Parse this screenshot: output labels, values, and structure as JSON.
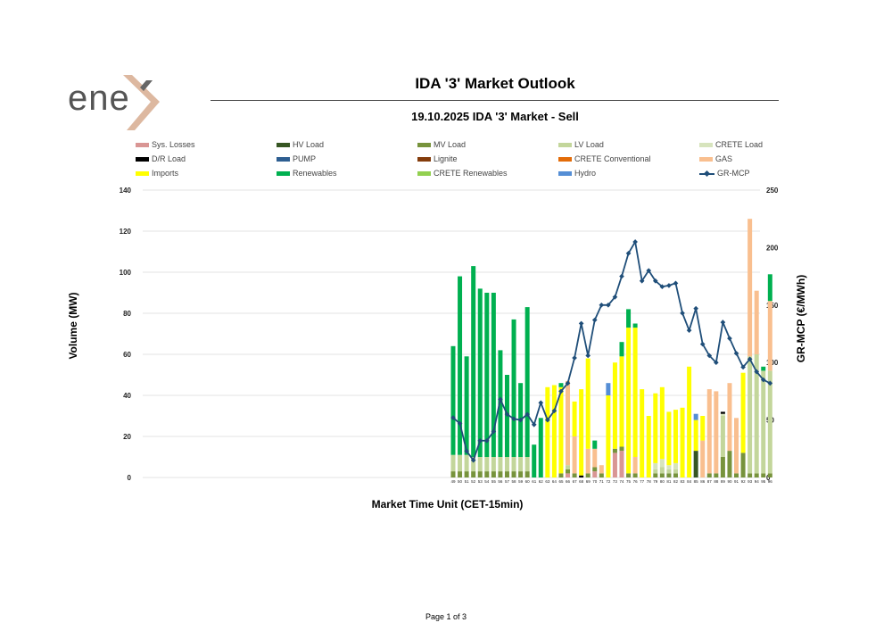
{
  "header": {
    "logo_text": "ene",
    "report_title": "IDA '3' Market Outlook",
    "chart_title": "19.10.2025  IDA '3' Market - Sell"
  },
  "footer": {
    "page_label": "Page 1 of 3"
  },
  "colors": {
    "sys_losses": "#D99694",
    "hv_load": "#375623",
    "mv_load": "#77933C",
    "lv_load": "#C3D69B",
    "crete_load": "#D7E4BD",
    "dr_load": "#000000",
    "pump": "#2E5E91",
    "lignite": "#843C0C",
    "crete_conventional": "#E36C09",
    "gas": "#F9BF8F",
    "imports": "#FFFF00",
    "renewables": "#00B050",
    "crete_renewables": "#92D050",
    "hydro": "#558ED5",
    "gr_mcp": "#1F4E79"
  },
  "chart_data": {
    "type": "bar",
    "title": "19.10.2025  IDA '3' Market - Sell",
    "xlabel": "Market Time Unit (CET-15min)",
    "ylabel": "Volume (MW)",
    "y2label": "GR-MCP (€/MWh)",
    "ylim": [
      0,
      140
    ],
    "y2lim": [
      0,
      250
    ],
    "yticks": [
      0,
      20,
      40,
      60,
      80,
      100,
      120,
      140
    ],
    "y2ticks": [
      0,
      50,
      100,
      150,
      200,
      250
    ],
    "grid": true,
    "legend_position": "top",
    "categories": [
      "49",
      "50",
      "51",
      "52",
      "53",
      "54",
      "55",
      "56",
      "57",
      "58",
      "59",
      "60",
      "61",
      "62",
      "63",
      "64",
      "65",
      "66",
      "67",
      "68",
      "69",
      "70",
      "71",
      "72",
      "73",
      "74",
      "75",
      "76",
      "77",
      "78",
      "79",
      "80",
      "81",
      "82",
      "83",
      "84",
      "85",
      "86",
      "87",
      "88",
      "89",
      "90",
      "91",
      "92",
      "93",
      "94",
      "95",
      "96"
    ],
    "series": [
      {
        "name": "Sys. Losses",
        "key": "sys_losses",
        "kind": "bar",
        "values": [
          0,
          0,
          0,
          0,
          0,
          0,
          0,
          0,
          0,
          0,
          0,
          0,
          0,
          0,
          0,
          0,
          0,
          2,
          0,
          0,
          0,
          3,
          0,
          0,
          12,
          13,
          0,
          0,
          0,
          0,
          0,
          0,
          0,
          0,
          0,
          0,
          0,
          0,
          0,
          0,
          0,
          0,
          0,
          0,
          0,
          0,
          0,
          0
        ]
      },
      {
        "name": "HV Load",
        "key": "hv_load",
        "kind": "bar",
        "values": [
          0,
          0,
          0,
          0,
          0,
          0,
          0,
          0,
          0,
          0,
          0,
          0,
          0,
          0,
          0,
          0,
          0,
          0,
          0,
          0,
          0,
          0,
          0,
          0,
          0,
          0,
          0,
          0,
          0,
          0,
          0,
          0,
          0,
          0,
          0,
          0,
          13,
          0,
          0,
          0,
          0,
          0,
          0,
          0,
          0,
          0,
          0,
          0
        ]
      },
      {
        "name": "MV Load",
        "key": "mv_load",
        "kind": "bar",
        "values": [
          3,
          3,
          3,
          3,
          3,
          3,
          3,
          3,
          3,
          3,
          3,
          3,
          0,
          0,
          0,
          0,
          2,
          2,
          2,
          0,
          2,
          2,
          2,
          0,
          2,
          2,
          2,
          2,
          0,
          0,
          2,
          2,
          2,
          2,
          0,
          0,
          0,
          0,
          2,
          2,
          10,
          13,
          2,
          12,
          2,
          2,
          2,
          2
        ]
      },
      {
        "name": "LV Load",
        "key": "lv_load",
        "kind": "bar",
        "values": [
          8,
          8,
          8,
          7,
          7,
          7,
          7,
          7,
          7,
          7,
          7,
          7,
          0,
          0,
          0,
          0,
          0,
          2,
          0,
          0,
          0,
          0,
          0,
          0,
          0,
          0,
          0,
          0,
          0,
          0,
          2,
          3,
          2,
          2,
          0,
          0,
          0,
          0,
          0,
          0,
          20,
          0,
          0,
          0,
          57,
          58,
          50,
          50
        ]
      },
      {
        "name": "CRETE Load",
        "key": "crete_load",
        "kind": "bar",
        "values": [
          0,
          0,
          0,
          0,
          0,
          0,
          0,
          0,
          0,
          0,
          0,
          0,
          0,
          0,
          0,
          0,
          0,
          0,
          0,
          0,
          0,
          0,
          0,
          0,
          0,
          0,
          0,
          0,
          0,
          0,
          3,
          4,
          2,
          3,
          0,
          0,
          0,
          0,
          0,
          0,
          1,
          0,
          0,
          0,
          0,
          0,
          0,
          0
        ]
      },
      {
        "name": "D/R Load",
        "key": "dr_load",
        "kind": "bar",
        "values": [
          0,
          0,
          0,
          0,
          0,
          0,
          0,
          0,
          0,
          0,
          0,
          0,
          0,
          0,
          0,
          0,
          0,
          0,
          0,
          1,
          0,
          0,
          0,
          0,
          0,
          0,
          0,
          0,
          0,
          0,
          0,
          0,
          0,
          0,
          0,
          0,
          0,
          0,
          0,
          0,
          1,
          0,
          0,
          0,
          0,
          0,
          0,
          0
        ]
      },
      {
        "name": "PUMP",
        "key": "pump",
        "kind": "bar",
        "values": [
          0,
          0,
          0,
          0,
          0,
          0,
          0,
          0,
          0,
          0,
          0,
          0,
          0,
          0,
          0,
          0,
          0,
          0,
          0,
          0,
          0,
          0,
          0,
          0,
          0,
          0,
          0,
          0,
          0,
          0,
          0,
          0,
          0,
          0,
          0,
          0,
          0,
          0,
          0,
          0,
          0,
          0,
          0,
          0,
          0,
          0,
          0,
          0
        ]
      },
      {
        "name": "Lignite",
        "key": "lignite",
        "kind": "bar",
        "values": [
          0,
          0,
          0,
          0,
          0,
          0,
          0,
          0,
          0,
          0,
          0,
          0,
          0,
          0,
          0,
          0,
          0,
          0,
          0,
          0,
          0,
          0,
          0,
          0,
          0,
          0,
          0,
          0,
          0,
          0,
          0,
          0,
          0,
          0,
          0,
          0,
          0,
          0,
          0,
          0,
          0,
          0,
          0,
          0,
          0,
          0,
          0,
          0
        ]
      },
      {
        "name": "CRETE Conventional",
        "key": "crete_conventional",
        "kind": "bar",
        "values": [
          0,
          0,
          0,
          0,
          0,
          0,
          0,
          0,
          0,
          0,
          0,
          0,
          0,
          0,
          0,
          0,
          0,
          0,
          0,
          0,
          0,
          0,
          0,
          0,
          0,
          0,
          0,
          0,
          0,
          0,
          0,
          0,
          0,
          0,
          0,
          0,
          0,
          0,
          0,
          0,
          0,
          0,
          0,
          0,
          0,
          0,
          0,
          0
        ]
      },
      {
        "name": "GAS",
        "key": "gas",
        "kind": "bar",
        "values": [
          0,
          0,
          0,
          0,
          0,
          0,
          0,
          0,
          0,
          0,
          0,
          0,
          0,
          0,
          0,
          0,
          0,
          41,
          18,
          0,
          12,
          9,
          4,
          0,
          0,
          0,
          0,
          8,
          0,
          0,
          0,
          0,
          0,
          0,
          0,
          0,
          0,
          18,
          41,
          40,
          0,
          33,
          27,
          0,
          67,
          31,
          0,
          34
        ]
      },
      {
        "name": "Imports",
        "key": "imports",
        "kind": "bar",
        "values": [
          0,
          0,
          0,
          0,
          0,
          0,
          0,
          0,
          0,
          0,
          0,
          0,
          0,
          0,
          44,
          45,
          42,
          0,
          17,
          42,
          44,
          0,
          0,
          40,
          42,
          44,
          71,
          63,
          43,
          30,
          34,
          35,
          26,
          26,
          34,
          54,
          15,
          12,
          0,
          0,
          0,
          0,
          0,
          39,
          0,
          0,
          0,
          0
        ]
      },
      {
        "name": "Renewables",
        "key": "renewables",
        "kind": "bar",
        "values": [
          53,
          87,
          48,
          93,
          82,
          80,
          80,
          52,
          40,
          67,
          36,
          73,
          16,
          29,
          0,
          0,
          2,
          0,
          0,
          0,
          0,
          4,
          0,
          0,
          0,
          7,
          9,
          2,
          0,
          0,
          0,
          0,
          0,
          0,
          0,
          0,
          0,
          0,
          0,
          0,
          0,
          0,
          0,
          0,
          0,
          0,
          2,
          13
        ]
      },
      {
        "name": "CRETE Renewables",
        "key": "crete_renewables",
        "kind": "bar",
        "values": [
          0,
          0,
          0,
          0,
          0,
          0,
          0,
          0,
          0,
          0,
          0,
          0,
          0,
          0,
          0,
          0,
          0,
          0,
          0,
          0,
          0,
          0,
          0,
          0,
          0,
          0,
          0,
          0,
          0,
          0,
          0,
          0,
          0,
          0,
          0,
          0,
          0,
          0,
          0,
          0,
          0,
          0,
          0,
          0,
          0,
          0,
          0,
          0
        ]
      },
      {
        "name": "Hydro",
        "key": "hydro",
        "kind": "bar",
        "values": [
          0,
          0,
          0,
          0,
          0,
          0,
          0,
          0,
          0,
          0,
          0,
          0,
          0,
          0,
          0,
          0,
          0,
          0,
          0,
          0,
          0,
          0,
          0,
          6,
          0,
          0,
          0,
          0,
          0,
          0,
          0,
          0,
          0,
          0,
          0,
          0,
          3,
          0,
          0,
          0,
          0,
          0,
          0,
          0,
          0,
          0,
          0,
          0
        ]
      },
      {
        "name": "GR-MCP",
        "key": "gr_mcp",
        "kind": "line",
        "axis": "right",
        "values": [
          52,
          47,
          23,
          15,
          32,
          32,
          40,
          68,
          55,
          51,
          50,
          55,
          46,
          65,
          50,
          58,
          75,
          82,
          104,
          134,
          106,
          137,
          150,
          150,
          157,
          175,
          195,
          205,
          171,
          180,
          171,
          166,
          167,
          169,
          143,
          128,
          147,
          116,
          106,
          100,
          135,
          121,
          108,
          96,
          103,
          92,
          85,
          82
        ]
      }
    ]
  }
}
